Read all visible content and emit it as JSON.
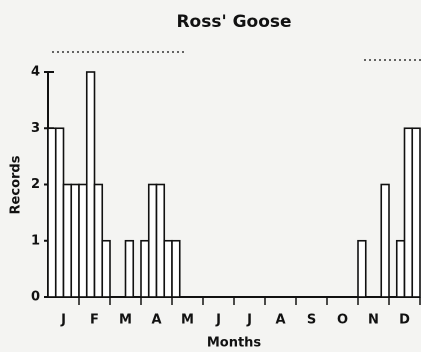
{
  "chart_data": {
    "type": "bar",
    "title": "Ross' Goose",
    "xlabel": "Months",
    "ylabel": "Records",
    "categories": [
      null,
      "J",
      null,
      null,
      null,
      "F",
      null,
      null,
      null,
      "M",
      null,
      null,
      null,
      "A",
      null,
      null,
      null,
      "M",
      null,
      null,
      null,
      "J",
      null,
      null,
      null,
      "J",
      null,
      null,
      null,
      "A",
      null,
      null,
      null,
      "S",
      null,
      null,
      null,
      "O",
      null,
      null,
      null,
      "N",
      null,
      null,
      null,
      "D",
      null,
      null
    ],
    "values": [
      3,
      3,
      2,
      2,
      2,
      4,
      2,
      1,
      0,
      0,
      1,
      0,
      1,
      2,
      2,
      1,
      1,
      0,
      0,
      0,
      0,
      0,
      0,
      0,
      0,
      0,
      0,
      0,
      0,
      0,
      0,
      0,
      0,
      0,
      0,
      0,
      0,
      0,
      0,
      0,
      1,
      0,
      0,
      2,
      0,
      1,
      3,
      3
    ],
    "color": "#ffffff",
    "ylim": [
      0,
      4
    ],
    "yticks": [
      0,
      1,
      2,
      3,
      4
    ]
  }
}
